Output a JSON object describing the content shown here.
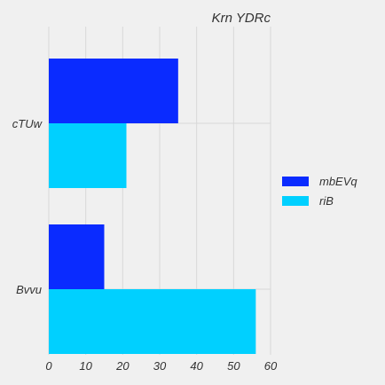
{
  "chart_data": {
    "type": "bar",
    "orientation": "horizontal",
    "title": "Krn YDRc",
    "categories": [
      "cTUw",
      "Bvvu"
    ],
    "series": [
      {
        "name": "mbEVq",
        "color": "#0a2bff",
        "values": [
          35,
          15
        ]
      },
      {
        "name": "riB",
        "color": "#00d0ff",
        "values": [
          21,
          56
        ]
      }
    ],
    "xlim": [
      0,
      60
    ],
    "xticks": [
      "0",
      "10",
      "20",
      "30",
      "40",
      "50",
      "60"
    ],
    "grid": true,
    "legend_position": "right"
  }
}
